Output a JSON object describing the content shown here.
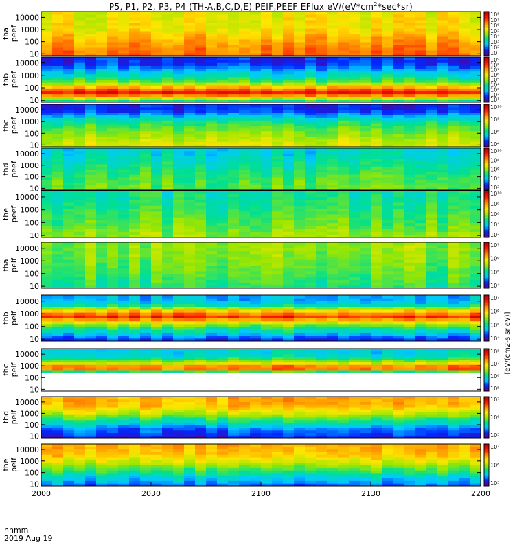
{
  "chart_data": {
    "type": "heatmap",
    "title": "P5, P1, P2, P3, P4 (TH-A,B,C,D,E) PEIF,PEEF EFlux eV/(eV*cm2*sec*sr)",
    "title_parts": {
      "main": "P5, P1, P2, P3, P4 (TH-A,B,C,D,E) PEIF,PEEF EFlux eV/(eV*cm",
      "sup": "2",
      "tail": "*sec*sr)"
    },
    "x_tick_labels": [
      "2000",
      "2030",
      "2100",
      "2130",
      "2200"
    ],
    "x_label_line1": "hhmm",
    "x_label_line2": "2019 Aug 19",
    "y_scale": "log",
    "y_tick_labels": [
      "10",
      "100",
      "1000",
      "10000"
    ],
    "ylim": [
      7,
      30000
    ],
    "colorbar_scale": "log",
    "colorbar_units": "[eV/(cm2-s sr eV)]",
    "colormap": [
      "#5a0090",
      "#0028ff",
      "#00c8ff",
      "#00e090",
      "#9ae600",
      "#ffe600",
      "#ff8c00",
      "#ff1a00",
      "#c00000"
    ],
    "panels": [
      {
        "id": "a-peef",
        "probe": "tha",
        "species": "peef",
        "y_label": "tha\npeef",
        "colorbar_ticks": [
          "10",
          "10²",
          "10³",
          "10⁴",
          "10⁵",
          "10⁶",
          "10⁷",
          "10⁸"
        ],
        "profile": [
          [
            10,
            0.78
          ],
          [
            100,
            0.72
          ],
          [
            1000,
            0.62
          ],
          [
            10000,
            0.6
          ]
        ]
      },
      {
        "id": "b-peef",
        "probe": "thb",
        "species": "peef",
        "y_label": "thb\npeef",
        "colorbar_ticks": [
          "10¹",
          "10²",
          "10³",
          "10⁴",
          "10⁵",
          "10⁶",
          "10⁷",
          "10⁸",
          "10⁹"
        ],
        "profile": [
          [
            8,
            0.35
          ],
          [
            15,
            0.55
          ],
          [
            40,
            0.92
          ],
          [
            100,
            0.75
          ],
          [
            300,
            0.45
          ],
          [
            1000,
            0.33
          ],
          [
            4000,
            0.2
          ],
          [
            10000,
            0.12
          ]
        ]
      },
      {
        "id": "c-peef",
        "probe": "thc",
        "species": "peef",
        "y_label": "thc\npeef",
        "colorbar_ticks": [
          "10⁴",
          "10⁶",
          "10⁸",
          "10¹⁰"
        ],
        "profile": [
          [
            10,
            0.58
          ],
          [
            100,
            0.5
          ],
          [
            1000,
            0.38
          ],
          [
            4000,
            0.22
          ],
          [
            10000,
            0.12
          ]
        ]
      },
      {
        "id": "d-peef",
        "probe": "thd",
        "species": "peef",
        "y_label": "thd\npeef",
        "colorbar_ticks": [
          "10²",
          "10⁴",
          "10⁶",
          "10⁸",
          "10¹⁰"
        ],
        "profile": [
          [
            10,
            0.45
          ],
          [
            100,
            0.42
          ],
          [
            1000,
            0.36
          ],
          [
            10000,
            0.3
          ]
        ]
      },
      {
        "id": "e-peef",
        "probe": "the",
        "species": "peef",
        "y_label": "the\npeef",
        "colorbar_ticks": [
          "10²",
          "10⁴",
          "10⁶",
          "10⁸",
          "10¹⁰"
        ],
        "profile": [
          [
            10,
            0.5
          ],
          [
            100,
            0.44
          ],
          [
            1000,
            0.4
          ],
          [
            10000,
            0.36
          ]
        ]
      },
      {
        "id": "a-peif",
        "probe": "tha",
        "species": "peif",
        "y_label": "tha\npeif",
        "colorbar_ticks": [
          "10⁴",
          "10⁵",
          "10⁶",
          "10⁷"
        ],
        "profile": [
          [
            10,
            0.4
          ],
          [
            100,
            0.44
          ],
          [
            1000,
            0.48
          ],
          [
            10000,
            0.5
          ]
        ]
      },
      {
        "id": "b-peif",
        "probe": "thb",
        "species": "peif",
        "y_label": "thb\npeif",
        "colorbar_ticks": [
          "10⁴",
          "10⁵",
          "10⁶",
          "10⁷"
        ],
        "profile": [
          [
            8,
            0.12
          ],
          [
            30,
            0.28
          ],
          [
            150,
            0.5
          ],
          [
            600,
            0.88
          ],
          [
            1500,
            0.7
          ],
          [
            5000,
            0.35
          ],
          [
            10000,
            0.25
          ]
        ]
      },
      {
        "id": "c-peif",
        "probe": "thc",
        "species": "peif",
        "y_label": "thc\npeif",
        "colorbar_ticks": [
          "10⁵",
          "10⁶",
          "10⁷",
          "10⁸"
        ],
        "profile": [
          [
            300,
            0.3
          ],
          [
            700,
            0.88
          ],
          [
            1500,
            0.6
          ],
          [
            5000,
            0.38
          ],
          [
            10000,
            0.3
          ]
        ]
      },
      {
        "id": "d-peif",
        "probe": "thd",
        "species": "peif",
        "y_label": "thd\npeif",
        "colorbar_ticks": [
          "10⁵",
          "10⁶",
          "10⁷"
        ],
        "profile": [
          [
            8,
            0.1
          ],
          [
            40,
            0.18
          ],
          [
            200,
            0.35
          ],
          [
            1000,
            0.55
          ],
          [
            5000,
            0.68
          ],
          [
            10000,
            0.7
          ]
        ]
      },
      {
        "id": "e-peif",
        "probe": "the",
        "species": "peif",
        "y_label": "the\npeif",
        "colorbar_ticks": [
          "10⁵",
          "10⁶",
          "10⁷"
        ],
        "profile": [
          [
            8,
            0.18
          ],
          [
            40,
            0.3
          ],
          [
            300,
            0.48
          ],
          [
            3000,
            0.66
          ],
          [
            10000,
            0.7
          ]
        ]
      }
    ]
  }
}
